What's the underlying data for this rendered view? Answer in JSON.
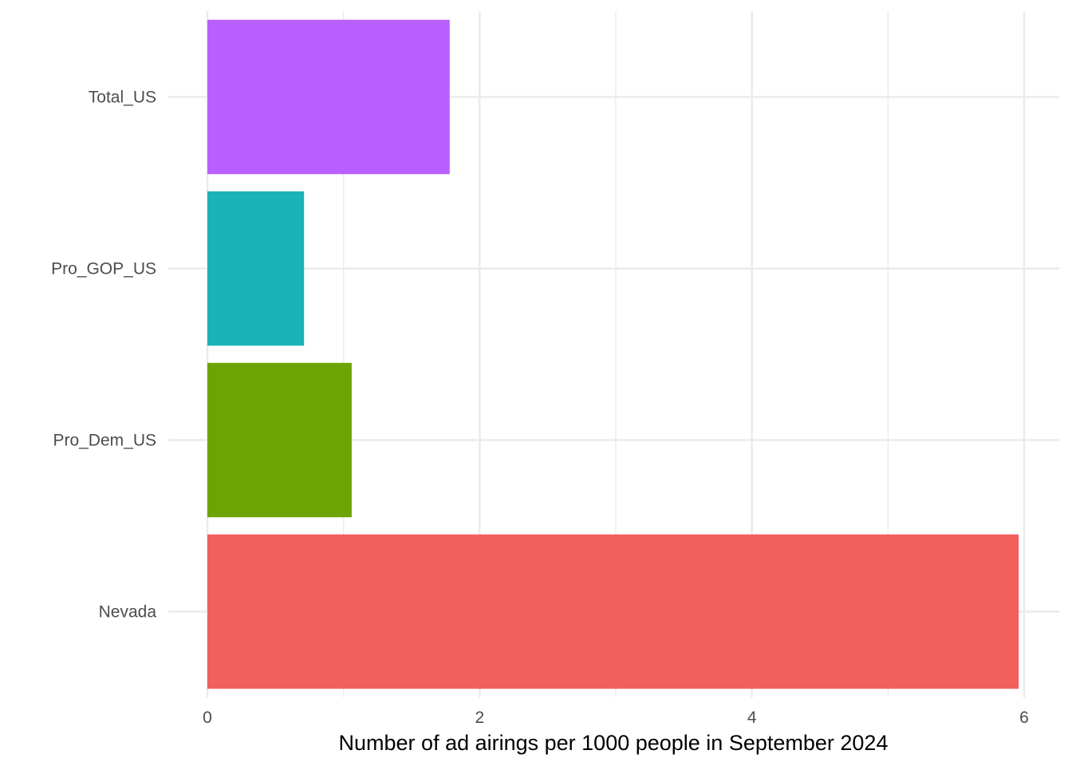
{
  "chart_data": {
    "type": "bar",
    "orientation": "horizontal",
    "categories": [
      "Total_US",
      "Pro_GOP_US",
      "Pro_Dem_US",
      "Nevada"
    ],
    "values": [
      1.78,
      0.71,
      1.06,
      5.96
    ],
    "colors": [
      "#B95FFF",
      "#1BB3B7",
      "#6CA502",
      "#F2605C"
    ],
    "xlabel": "Number of ad airings per 1000 people in September 2024",
    "ylabel": "",
    "title": "",
    "xlim": [
      0,
      6
    ],
    "xticks": [
      0,
      2,
      4,
      6
    ],
    "xtick_labels": [
      "0",
      "2",
      "4",
      "6"
    ],
    "grid": true,
    "legend": "none"
  }
}
